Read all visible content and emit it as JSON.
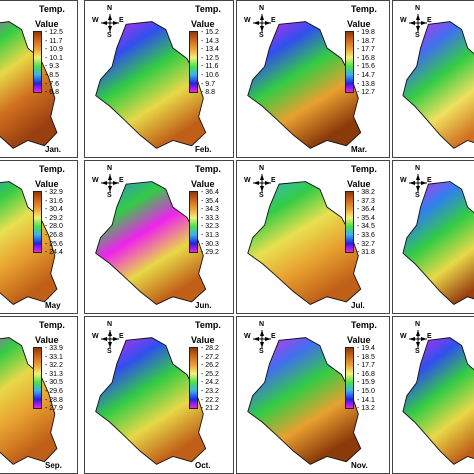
{
  "legend_heading": "Temp.",
  "legend_sub": "Value",
  "compass": {
    "n": "N",
    "s": "S",
    "e": "E",
    "w": "W",
    "icon": "compass-rose-icon"
  },
  "panels": [
    {
      "id": "jan",
      "month": "Jan.",
      "ticks": [
        "12.5",
        "11.7",
        "10.9",
        "10.1",
        "9.3",
        "8.5",
        "7.6",
        "6.8"
      ],
      "palette": [
        "#8b3a0a",
        "#d2691e",
        "#e8a33a",
        "#f4f07a",
        "#4ce04c",
        "#3bb0f0",
        "#2222dd",
        "#ee22ee"
      ],
      "colors": {
        "top": "#ee22ee",
        "upper": "#33cc44",
        "mid": "#e8d848",
        "low": "#d07020",
        "bottom": "#9a4010"
      },
      "compass": false
    },
    {
      "id": "feb",
      "month": "Feb.",
      "ticks": [
        "15.2",
        "14.3",
        "13.4",
        "12.5",
        "11.6",
        "10.6",
        "9.7",
        "8.8"
      ],
      "palette": [
        "#8b3a0a",
        "#d2691e",
        "#e8a33a",
        "#f4f07a",
        "#4ce04c",
        "#3bb0f0",
        "#2222dd",
        "#ee22ee"
      ],
      "colors": {
        "top": "#ee22ee",
        "upper": "#3050ee",
        "mid": "#33cc44",
        "low": "#e8d848",
        "bottom": "#c06018"
      },
      "compass": true
    },
    {
      "id": "mar",
      "month": "Mar.",
      "ticks": [
        "19.8",
        "18.7",
        "17.7",
        "16.8",
        "15.6",
        "14.7",
        "13.8",
        "12.7"
      ],
      "palette": [
        "#8b3a0a",
        "#d2691e",
        "#e8a33a",
        "#f4f07a",
        "#4ce04c",
        "#3bb0f0",
        "#2222dd",
        "#ee22ee"
      ],
      "colors": {
        "top": "#ee22ee",
        "upper": "#3050ee",
        "mid": "#33cc44",
        "low": "#e8a030",
        "bottom": "#8b3a0a"
      },
      "compass": true
    },
    {
      "id": "apr",
      "month": "",
      "ticks": [],
      "palette": [],
      "colors": {
        "top": "#ee22ee",
        "upper": "#4070ee",
        "mid": "#33cc44",
        "low": "#f0e060",
        "bottom": "#d07020"
      },
      "compass": true
    },
    {
      "id": "may",
      "month": "May",
      "ticks": [
        "32.9",
        "31.6",
        "30.4",
        "29.2",
        "28.0",
        "26.8",
        "25.6",
        "24.4"
      ],
      "palette": [
        "#8b3a0a",
        "#d2691e",
        "#e8a33a",
        "#f4f07a",
        "#4ce04c",
        "#3bb0f0",
        "#2222dd",
        "#ee22ee"
      ],
      "colors": {
        "top": "#3080ee",
        "upper": "#33cc44",
        "mid": "#e8e050",
        "low": "#e8a030",
        "bottom": "#c06018"
      },
      "compass": false
    },
    {
      "id": "jun",
      "month": "Jun.",
      "ticks": [
        "36.4",
        "35.4",
        "34.3",
        "33.3",
        "32.3",
        "31.3",
        "30.3",
        "29.2"
      ],
      "palette": [
        "#8b3a0a",
        "#d2691e",
        "#e8a33a",
        "#f4f07a",
        "#4ce04c",
        "#3bb0f0",
        "#2222dd",
        "#ee22ee"
      ],
      "colors": {
        "top": "#3080ee",
        "upper": "#33cc44",
        "mid": "#ee22ee",
        "low": "#e8d848",
        "bottom": "#c06018"
      },
      "compass": true
    },
    {
      "id": "jul",
      "month": "Jul.",
      "ticks": [
        "38.2",
        "37.3",
        "36.4",
        "35.4",
        "34.5",
        "33.6",
        "32.7",
        "31.8"
      ],
      "palette": [
        "#8b3a0a",
        "#d2691e",
        "#e8a33a",
        "#f4f07a",
        "#4ce04c",
        "#3bb0f0",
        "#2222dd",
        "#ee22ee"
      ],
      "colors": {
        "top": "#40b0ee",
        "upper": "#33cc44",
        "mid": "#e8e050",
        "low": "#e8a030",
        "bottom": "#c06018"
      },
      "compass": true
    },
    {
      "id": "aug",
      "month": "",
      "ticks": [],
      "palette": [],
      "colors": {
        "top": "#ee22ee",
        "upper": "#3080ee",
        "mid": "#33cc44",
        "low": "#e8d848",
        "bottom": "#9a4010"
      },
      "compass": true
    },
    {
      "id": "sep",
      "month": "Sep.",
      "ticks": [
        "33.9",
        "33.1",
        "32.2",
        "31.3",
        "30.5",
        "29.6",
        "28.8",
        "27.9"
      ],
      "palette": [
        "#8b3a0a",
        "#d2691e",
        "#e8a33a",
        "#f4f07a",
        "#4ce04c",
        "#3bb0f0",
        "#2222dd",
        "#ee22ee"
      ],
      "colors": {
        "top": "#ee22ee",
        "upper": "#33cc44",
        "mid": "#e8d848",
        "low": "#e8a030",
        "bottom": "#c06018"
      },
      "compass": false
    },
    {
      "id": "oct",
      "month": "Oct.",
      "ticks": [
        "28.2",
        "27.2",
        "26.2",
        "25.2",
        "24.2",
        "23.2",
        "22.2",
        "21.2"
      ],
      "palette": [
        "#8b3a0a",
        "#d2691e",
        "#e8a33a",
        "#f4f07a",
        "#4ce04c",
        "#3bb0f0",
        "#2222dd",
        "#ee22ee"
      ],
      "colors": {
        "top": "#ee22ee",
        "upper": "#3050ee",
        "mid": "#33cc44",
        "low": "#e8d848",
        "bottom": "#c06018"
      },
      "compass": true
    },
    {
      "id": "nov",
      "month": "Nov.",
      "ticks": [
        "19.4",
        "18.5",
        "17.7",
        "16.8",
        "15.9",
        "15.0",
        "14.1",
        "13.2"
      ],
      "palette": [
        "#8b3a0a",
        "#d2691e",
        "#e8a33a",
        "#f4f07a",
        "#4ce04c",
        "#3bb0f0",
        "#2222dd",
        "#ee22ee"
      ],
      "colors": {
        "top": "#ee22ee",
        "upper": "#4070ee",
        "mid": "#33cc44",
        "low": "#e8a030",
        "bottom": "#8b3a0a"
      },
      "compass": true
    },
    {
      "id": "dec",
      "month": "",
      "ticks": [],
      "palette": [],
      "colors": {
        "top": "#ee22ee",
        "upper": "#3050ee",
        "mid": "#33cc44",
        "low": "#e8d848",
        "bottom": "#c06018"
      },
      "compass": true
    }
  ]
}
